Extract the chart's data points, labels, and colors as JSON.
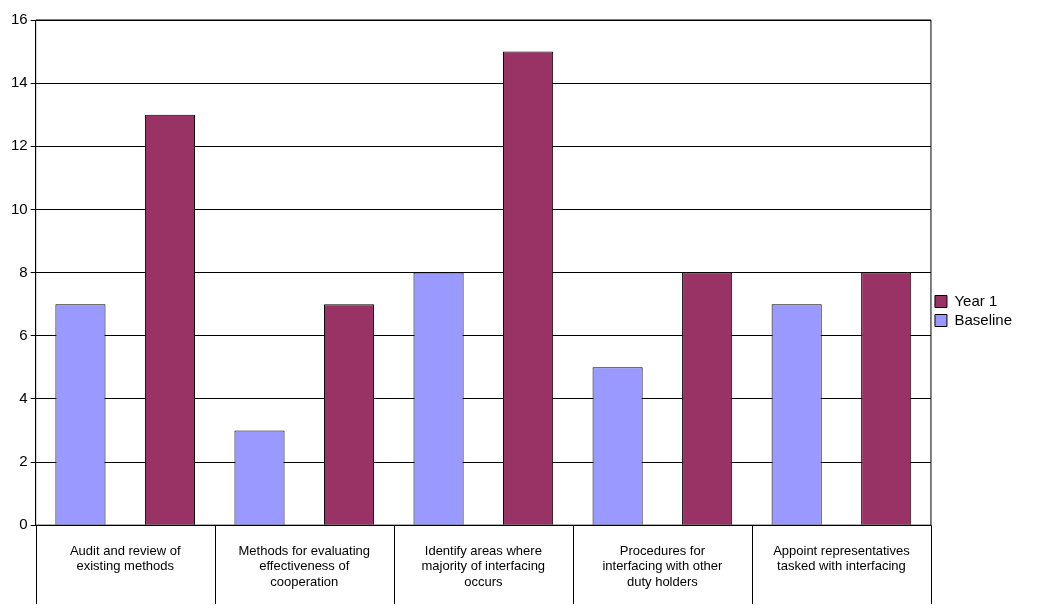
{
  "chart_data": {
    "type": "bar",
    "categories": [
      "Audit and review of existing methods",
      "Methods for evaluating effectiveness of cooperation",
      "Identify areas where majority of interfacing occurs",
      "Procedures for interfacing with other duty holders",
      "Appoint representatives tasked with interfacing"
    ],
    "series": [
      {
        "name": "Baseline",
        "color": "#9999ff",
        "values": [
          7,
          3,
          8,
          5,
          7
        ]
      },
      {
        "name": "Year 1",
        "color": "#993366",
        "values": [
          13,
          7,
          15,
          8,
          8
        ]
      }
    ],
    "ylim": [
      0,
      16
    ],
    "yticks": [
      0,
      2,
      4,
      6,
      8,
      10,
      12,
      14,
      16
    ],
    "grid": "y",
    "legend": "right"
  }
}
